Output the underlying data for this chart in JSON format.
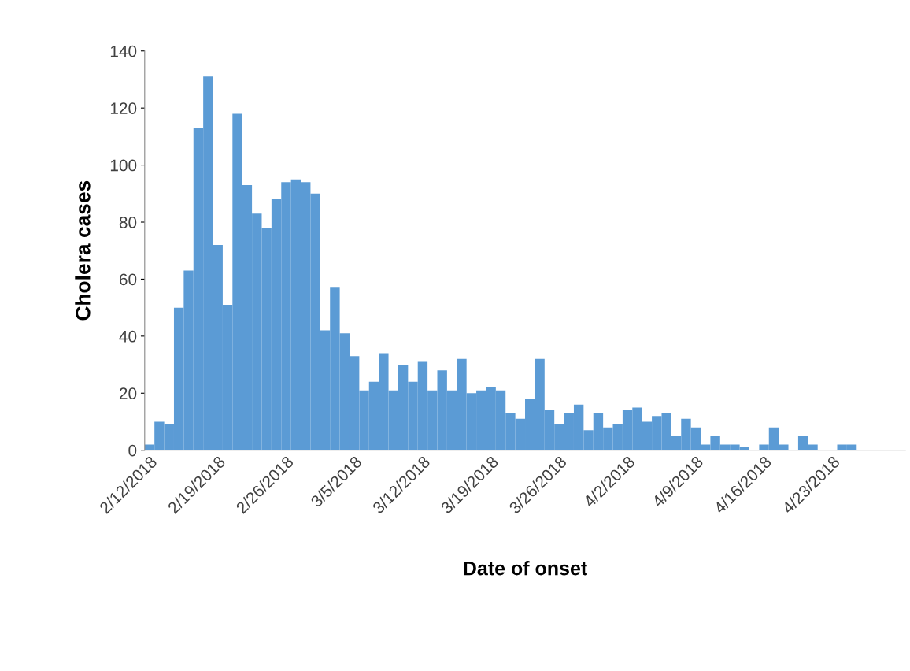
{
  "chart_data": {
    "type": "bar",
    "xlabel": "Date of onset",
    "ylabel": "Cholera cases",
    "categories": [
      "2/12/2018",
      null,
      null,
      null,
      null,
      null,
      null,
      "2/19/2018",
      null,
      null,
      null,
      null,
      null,
      null,
      "2/26/2018",
      null,
      null,
      null,
      null,
      null,
      null,
      "3/5/2018",
      null,
      null,
      null,
      null,
      null,
      null,
      "3/12/2018",
      null,
      null,
      null,
      null,
      null,
      null,
      "3/19/2018",
      null,
      null,
      null,
      null,
      null,
      null,
      "3/26/2018",
      null,
      null,
      null,
      null,
      null,
      null,
      "4/2/2018",
      null,
      null,
      null,
      null,
      null,
      null,
      "4/9/2018",
      null,
      null,
      null,
      null,
      null,
      null,
      "4/16/2018",
      null,
      null,
      null,
      null,
      null,
      null,
      "4/23/2018",
      null,
      null,
      null,
      null,
      null,
      null,
      null
    ],
    "values": [
      2,
      10,
      9,
      50,
      63,
      113,
      131,
      72,
      51,
      118,
      93,
      83,
      78,
      88,
      94,
      95,
      94,
      90,
      42,
      57,
      41,
      33,
      21,
      24,
      34,
      21,
      30,
      24,
      31,
      21,
      28,
      21,
      32,
      20,
      21,
      22,
      21,
      13,
      11,
      18,
      32,
      14,
      9,
      13,
      16,
      7,
      13,
      8,
      9,
      14,
      15,
      10,
      12,
      13,
      5,
      11,
      8,
      2,
      5,
      2,
      2,
      1,
      0,
      2,
      8,
      2,
      0,
      5,
      2,
      0,
      0,
      2,
      2,
      0,
      0,
      0,
      0,
      0
    ],
    "color": "#5b9bd5",
    "ylim": [
      0,
      140
    ],
    "yticks": [
      0,
      20,
      40,
      60,
      80,
      100,
      120,
      140
    ],
    "grid": false
  }
}
